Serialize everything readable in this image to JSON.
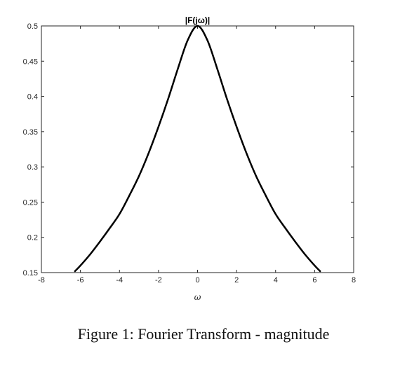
{
  "chart_data": {
    "type": "line",
    "title": "|F(jω)|",
    "xlabel": "ω",
    "ylabel": "",
    "xlim": [
      -8,
      8
    ],
    "ylim": [
      0.15,
      0.5
    ],
    "xticks": [
      -8,
      -6,
      -4,
      -2,
      0,
      2,
      4,
      6,
      8
    ],
    "xtick_labels": [
      "-8",
      "-6",
      "-4",
      "-2",
      "0",
      "2",
      "4",
      "6",
      "8"
    ],
    "yticks": [
      0.15,
      0.2,
      0.25,
      0.3,
      0.35,
      0.4,
      0.45,
      0.5
    ],
    "ytick_labels": [
      "0.15",
      "0.2",
      "0.25",
      "0.3",
      "0.35",
      "0.4",
      "0.45",
      "0.5"
    ],
    "grid": false,
    "series": [
      {
        "color": "#000000",
        "x": [
          -6.28,
          -6,
          -5.5,
          -5,
          -4.5,
          -4,
          -3.5,
          -3,
          -2.5,
          -2,
          -1.5,
          -1,
          -0.5,
          0,
          0.5,
          1,
          1.5,
          2,
          2.5,
          3,
          3.5,
          4,
          4.5,
          5,
          5.5,
          6,
          6.28
        ],
        "y": [
          0.152,
          0.16,
          0.176,
          0.194,
          0.213,
          0.233,
          0.259,
          0.287,
          0.32,
          0.357,
          0.397,
          0.44,
          0.48,
          0.5,
          0.48,
          0.44,
          0.397,
          0.357,
          0.32,
          0.287,
          0.259,
          0.233,
          0.213,
          0.194,
          0.176,
          0.16,
          0.152
        ]
      }
    ]
  },
  "caption": "Figure 1: Fourier Transform - magnitude"
}
